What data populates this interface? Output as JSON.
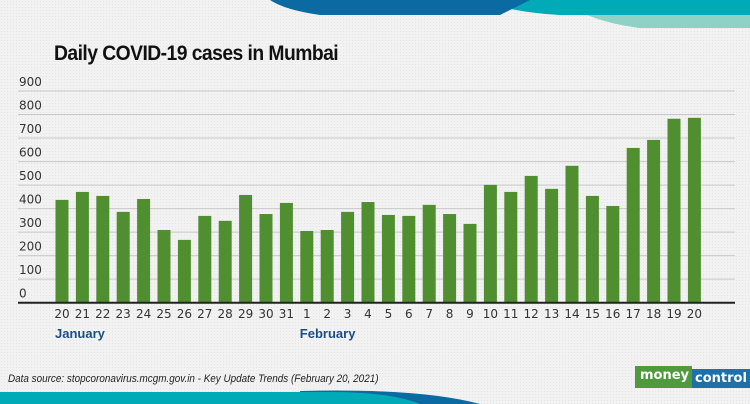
{
  "chart_data": {
    "type": "bar",
    "title": "Daily COVID-19 cases in Mumbai",
    "categories": [
      "20",
      "21",
      "22",
      "23",
      "24",
      "25",
      "26",
      "27",
      "28",
      "29",
      "30",
      "31",
      "1",
      "2",
      "3",
      "4",
      "5",
      "6",
      "7",
      "8",
      "9",
      "10",
      "11",
      "12",
      "13",
      "14",
      "15",
      "16",
      "17",
      "18",
      "19",
      "20"
    ],
    "month_labels": [
      {
        "label": "January",
        "at_index": 0
      },
      {
        "label": "February",
        "at_index": 12
      }
    ],
    "values": [
      437,
      471,
      454,
      386,
      441,
      309,
      267,
      369,
      348,
      458,
      377,
      424,
      305,
      309,
      386,
      428,
      373,
      369,
      416,
      377,
      335,
      501,
      471,
      539,
      484,
      582,
      454,
      411,
      658,
      692,
      782,
      786
    ],
    "ylim": [
      0,
      900
    ],
    "yticks": [
      0,
      100,
      200,
      300,
      400,
      500,
      600,
      700,
      800,
      900
    ],
    "xlabel": "",
    "ylabel": "",
    "grid": true,
    "bar_color": "#4f8f2f"
  },
  "footer": {
    "source": "Data source: stopcoronavirus.mcgm.gov.in - Key Update Trends (February 20, 2021)",
    "logo_part1": "money",
    "logo_part2": "control"
  },
  "colors": {
    "dark_blue": "#0a6aa1",
    "teal": "#00aab6",
    "light_teal": "#8fd1c5",
    "month_label": "#1a4f86"
  }
}
